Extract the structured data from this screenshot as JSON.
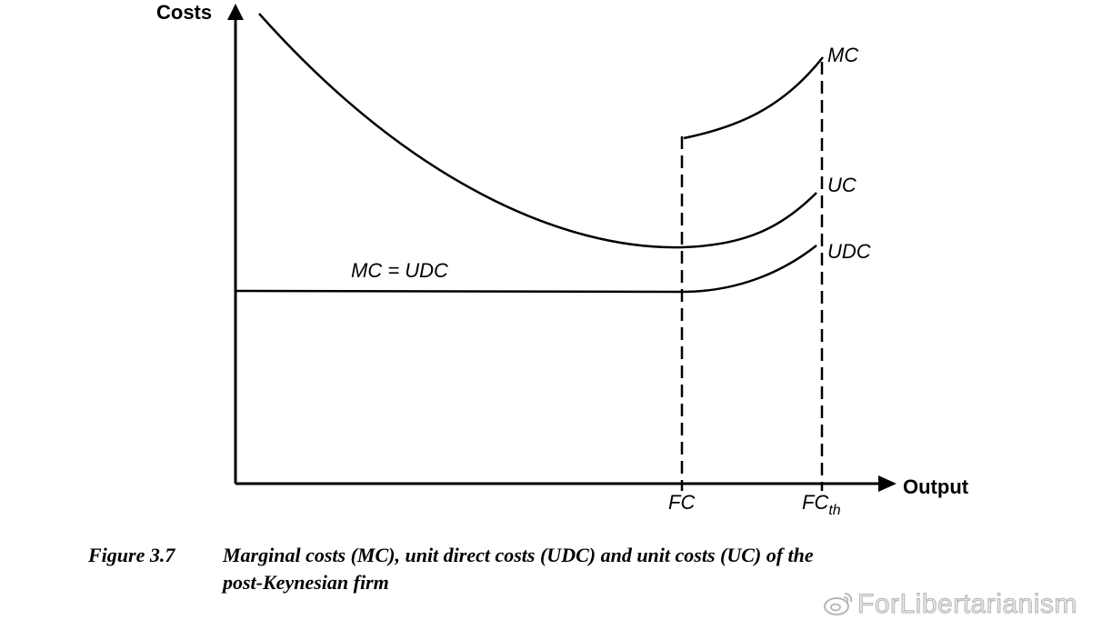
{
  "diagram": {
    "axes": {
      "y_label": "Costs",
      "x_label": "Output"
    },
    "x_markers": [
      {
        "id": "fc",
        "base": "FC",
        "sub": ""
      },
      {
        "id": "fcth",
        "base": "FC",
        "sub": "th"
      }
    ],
    "curve_labels": {
      "mc": "MC",
      "uc": "UC",
      "udc": "UDC",
      "mc_equals_udc": "MC = UDC"
    }
  },
  "caption": {
    "figure_number": "Figure 3.7",
    "line1": "Marginal costs (MC), unit direct costs (UDC) and unit costs (UC) of the",
    "line2": "post-Keynesian firm"
  },
  "watermark": {
    "text": "ForLibertarianism"
  },
  "colors": {
    "ink": "#000000",
    "watermark": "#b5b5b5"
  }
}
